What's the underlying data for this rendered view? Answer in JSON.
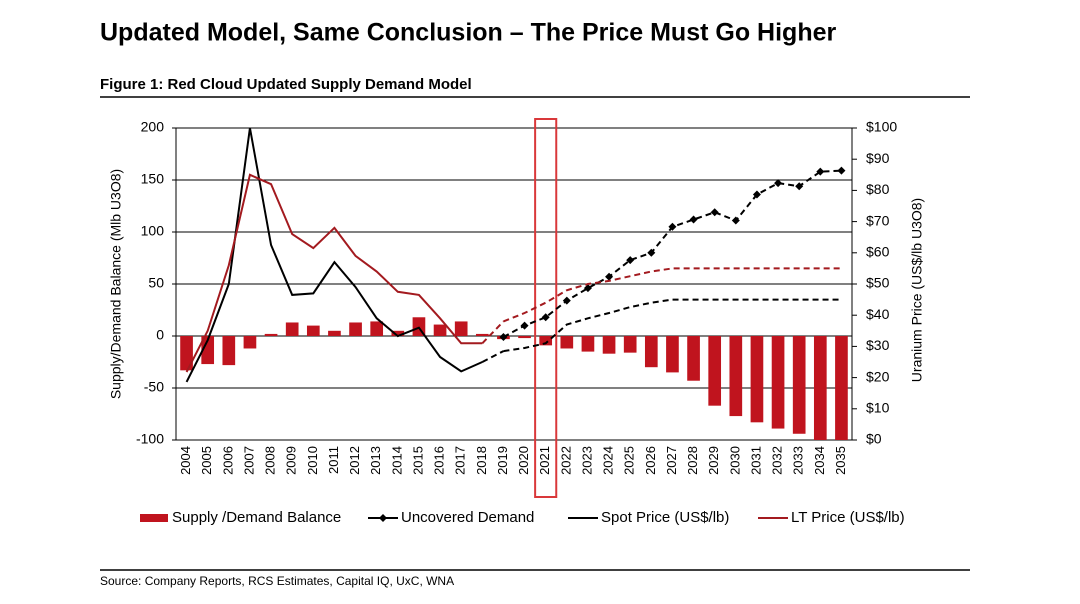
{
  "title": "Updated Model, Same Conclusion – The Price Must Go Higher",
  "source": "Source: Company Reports, RCS Estimates, Capital IQ, UxC, WNA",
  "chart_data": {
    "type": "bar-line",
    "subtitle": "Figure 1: Red Cloud Updated Supply Demand Model",
    "ylabel": "Supply/Demand Balance (Mlb U3O8)",
    "y2label": "Uranium Price (US$/lb U3O8)",
    "categories": [
      "2004",
      "2005",
      "2006",
      "2007",
      "2008",
      "2009",
      "2010",
      "2011",
      "2012",
      "2013",
      "2014",
      "2015",
      "2016",
      "2017",
      "2018",
      "2019",
      "2020",
      "2021",
      "2022",
      "2023",
      "2024",
      "2025",
      "2026",
      "2027",
      "2028",
      "2029",
      "2030",
      "2031",
      "2032",
      "2033",
      "2034",
      "2035"
    ],
    "ylim": [
      -100,
      200
    ],
    "yticks": [
      -100,
      -50,
      0,
      50,
      100,
      150,
      200
    ],
    "y2lim": [
      0,
      100
    ],
    "y2ticks": [
      {
        "value": 0,
        "label": "$0"
      },
      {
        "value": 10,
        "label": "$10"
      },
      {
        "value": 20,
        "label": "$20"
      },
      {
        "value": 30,
        "label": "$30"
      },
      {
        "value": 40,
        "label": "$40"
      },
      {
        "value": 50,
        "label": "$50"
      },
      {
        "value": 60,
        "label": "$60"
      },
      {
        "value": 70,
        "label": "$70"
      },
      {
        "value": 80,
        "label": "$80"
      },
      {
        "value": 90,
        "label": "$90"
      },
      {
        "value": 100,
        "label": "$100"
      }
    ],
    "grid": true,
    "highlight_index": 17,
    "dashed_from": 15,
    "series": [
      {
        "name": "Supply /Demand Balance",
        "type": "bar",
        "color": "#c0141e",
        "values": [
          -33,
          -27,
          -28,
          -12,
          2,
          13,
          10,
          5,
          13,
          14,
          5,
          18,
          11,
          14,
          2,
          -3,
          -2,
          -9,
          -12,
          -15,
          -17,
          -16,
          -30,
          -35,
          -43,
          -67,
          -77,
          -83,
          -89,
          -94,
          -100,
          -100
        ]
      },
      {
        "name": "Uncovered Demand",
        "type": "line",
        "marker": "diamond",
        "color": "#000000",
        "values": [
          null,
          null,
          null,
          null,
          null,
          null,
          null,
          null,
          null,
          null,
          null,
          null,
          null,
          null,
          null,
          -1,
          10,
          18,
          34,
          46,
          57,
          73,
          80,
          105,
          112,
          119,
          111,
          136,
          147,
          144,
          158,
          159
        ]
      },
      {
        "name": "Spot Price (US$/lb)",
        "type": "line",
        "axis": "y2",
        "color": "#000000",
        "values": [
          18.6,
          32,
          50,
          100,
          62.5,
          46.5,
          47,
          57,
          49,
          39,
          33.3,
          36,
          26.6,
          22,
          25,
          28.5,
          29.5,
          31,
          37,
          39,
          40.7,
          42.6,
          44,
          45,
          45,
          45,
          45,
          45,
          45,
          45,
          45,
          45
        ]
      },
      {
        "name": "LT Price (US$/lb)",
        "type": "line",
        "axis": "y2",
        "color": "#a31a1f",
        "values": [
          21.8,
          35,
          56,
          85,
          82,
          66,
          61.5,
          68,
          59,
          54,
          47.5,
          46.5,
          39,
          31,
          31,
          38,
          40.7,
          44,
          48,
          50,
          51,
          52.5,
          54,
          55,
          55,
          55,
          55,
          55,
          55,
          55,
          55,
          55
        ]
      }
    ]
  }
}
